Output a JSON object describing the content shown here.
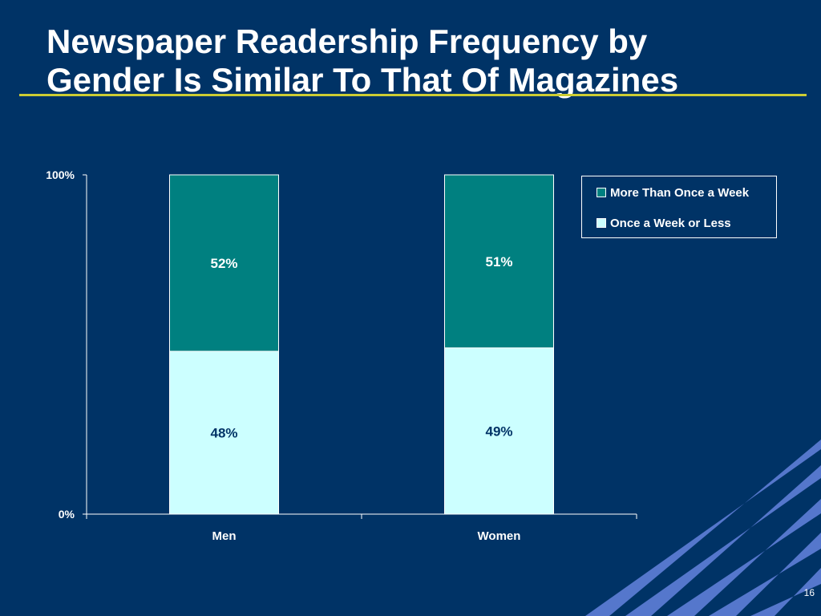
{
  "slide": {
    "title_line1": "Newspaper Readership Frequency by",
    "title_line2": "Gender Is Similar To That Of Magazines",
    "page_number": "16",
    "colors": {
      "background": "#003366",
      "title_rule": "#cccc33",
      "decor_stripes": "#5577cc"
    }
  },
  "chart_data": {
    "type": "bar",
    "stacked": true,
    "categories": [
      "Men",
      "Women"
    ],
    "series": [
      {
        "name": "Once a Week or Less",
        "values": [
          48,
          49
        ],
        "labels": [
          "48%",
          "49%"
        ],
        "color": "#ccffff",
        "label_color": "#003366"
      },
      {
        "name": "More Than Once a Week",
        "values": [
          52,
          51
        ],
        "labels": [
          "52%",
          "51%"
        ],
        "color": "#008080",
        "label_color": "#ffffff"
      }
    ],
    "y_ticks": [
      {
        "value": 0,
        "label": "0%"
      },
      {
        "value": 100,
        "label": "100%"
      }
    ],
    "ylim": [
      0,
      100
    ],
    "title": "",
    "xlabel": "",
    "ylabel": "",
    "grid": false,
    "legend_position": "top-right"
  }
}
